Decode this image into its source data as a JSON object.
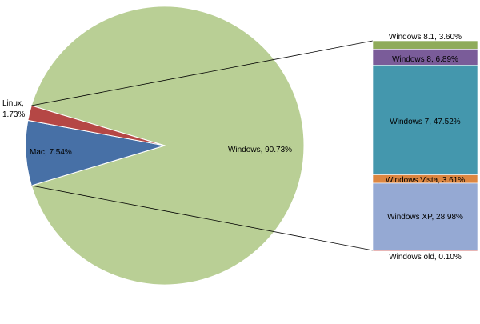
{
  "chart_data": [
    {
      "type": "pie",
      "title": "",
      "slices": [
        {
          "label": "Windows, 90.73%",
          "name": "Windows",
          "value": 90.73,
          "color": "#b9cf95"
        },
        {
          "label": "Mac, 7.54%",
          "name": "Mac",
          "value": 7.54,
          "color": "#4770a6"
        },
        {
          "label": "Linux, 1.73%",
          "name": "Linux",
          "value": 1.73,
          "color": "#b54745"
        }
      ]
    },
    {
      "type": "bar",
      "stacked": true,
      "title": "",
      "breakdown_of": "Windows",
      "segments": [
        {
          "label": "Windows 8.1, 3.60%",
          "name": "Windows 8.1",
          "value": 3.6,
          "color": "#8fab5a"
        },
        {
          "label": "Windows 8, 6.89%",
          "name": "Windows 8",
          "value": 6.89,
          "color": "#7a5c99"
        },
        {
          "label": "Windows 7, 47.52%",
          "name": "Windows 7",
          "value": 47.52,
          "color": "#4497ad"
        },
        {
          "label": "Windows Vista, 3.61%",
          "name": "Windows Vista",
          "value": 3.61,
          "color": "#dd8640"
        },
        {
          "label": "Windows XP, 28.98%",
          "name": "Windows XP",
          "value": 28.98,
          "color": "#95a9d3"
        },
        {
          "label": "Windows old, 0.10%",
          "name": "Windows old",
          "value": 0.1,
          "color": "#c44a4a"
        }
      ]
    }
  ]
}
